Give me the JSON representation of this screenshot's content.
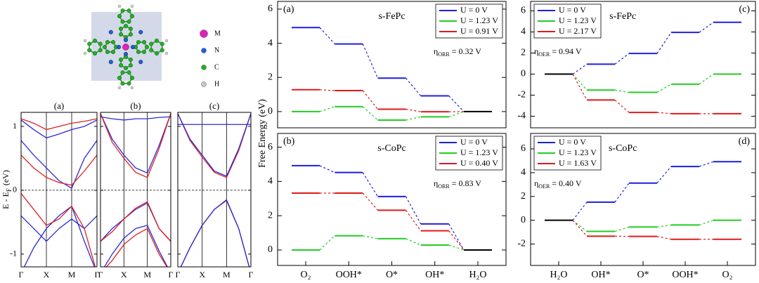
{
  "structure": {
    "legend": [
      {
        "label": "M",
        "color": "#e020c0"
      },
      {
        "label": "N",
        "color": "#2060e0"
      },
      {
        "label": "C",
        "color": "#22b022"
      },
      {
        "label": "H",
        "color": "#c8c8c8"
      }
    ]
  },
  "chart_data": [
    {
      "type": "line",
      "title": "(a)",
      "ylabel": {
        "text": "E - E",
        "subscript": "F",
        "suffix": "(eV)"
      },
      "x": [
        0,
        0.5,
        1,
        1.5,
        2,
        2.5,
        3
      ],
      "xlim": [
        0,
        3
      ],
      "ylim": [
        -1.2,
        1.22
      ],
      "xticks": [
        {
          "value": 0,
          "label": "Γ"
        },
        {
          "value": 1,
          "label": "X"
        },
        {
          "value": 2,
          "label": "M"
        },
        {
          "value": 3,
          "label": "Γ"
        }
      ],
      "yticks": [
        -1,
        0,
        1
      ],
      "ytick_labels": true,
      "xgrid": true,
      "reference_line": 0,
      "series": [
        {
          "color": "#2b2bd6",
          "values": [
            1.1,
            0.95,
            0.82,
            0.88,
            0.95,
            1.0,
            1.1
          ]
        },
        {
          "color": "#2b2bd6",
          "values": [
            0.78,
            0.55,
            0.35,
            0.15,
            0.03,
            0.5,
            0.78
          ]
        },
        {
          "color": "#2b2bd6",
          "values": [
            -1.3,
            -0.9,
            -0.6,
            -0.4,
            -0.25,
            -0.8,
            -1.3
          ]
        },
        {
          "color": "#2b2bd6",
          "values": [
            -0.4,
            -0.6,
            -0.8,
            -0.6,
            -0.45,
            -0.6,
            -0.4
          ]
        },
        {
          "color": "#e02020",
          "values": [
            1.12,
            1.05,
            0.95,
            1.0,
            1.05,
            1.08,
            1.12
          ]
        },
        {
          "color": "#e02020",
          "values": [
            0.55,
            0.35,
            0.2,
            0.12,
            0.08,
            0.3,
            0.55
          ]
        },
        {
          "color": "#e02020",
          "values": [
            -0.05,
            -0.3,
            -0.55,
            -0.45,
            -0.25,
            -0.6,
            -1.3
          ]
        }
      ]
    },
    {
      "type": "line",
      "title": "(b)",
      "x": [
        0,
        0.5,
        1,
        1.5,
        2,
        2.5,
        3
      ],
      "xlim": [
        0,
        3
      ],
      "ylim": [
        -1.2,
        1.22
      ],
      "xticks": [
        {
          "value": 0,
          "label": "Γ"
        },
        {
          "value": 1,
          "label": "X"
        },
        {
          "value": 2,
          "label": "M"
        },
        {
          "value": 3,
          "label": "Γ"
        }
      ],
      "yticks": [
        -1,
        0,
        1
      ],
      "ytick_labels": false,
      "xgrid": true,
      "reference_line": 0,
      "series": [
        {
          "color": "#2b2bd6",
          "values": [
            1.2,
            0.8,
            0.55,
            0.35,
            0.27,
            0.7,
            1.2
          ]
        },
        {
          "color": "#2b2bd6",
          "values": [
            1.15,
            1.12,
            1.1,
            1.12,
            1.12,
            1.14,
            1.15
          ]
        },
        {
          "color": "#2b2bd6",
          "values": [
            -0.8,
            -0.6,
            -0.45,
            -0.3,
            -0.2,
            -0.6,
            -0.8
          ]
        },
        {
          "color": "#2b2bd6",
          "values": [
            -1.3,
            -1.0,
            -0.75,
            -0.6,
            -0.55,
            -0.95,
            -1.3
          ]
        },
        {
          "color": "#e02020",
          "values": [
            1.2,
            0.75,
            0.5,
            0.28,
            0.2,
            0.65,
            1.2
          ]
        },
        {
          "color": "#e02020",
          "values": [
            -0.8,
            -0.65,
            -0.45,
            -0.28,
            -0.18,
            -0.6,
            -0.8
          ]
        },
        {
          "color": "#e02020",
          "values": [
            -1.3,
            -1.1,
            -0.85,
            -0.7,
            -0.6,
            -1.0,
            -1.3
          ]
        }
      ]
    },
    {
      "type": "line",
      "title": "(c)",
      "x": [
        0,
        0.5,
        1,
        1.5,
        2,
        2.5,
        3
      ],
      "xlim": [
        0,
        3
      ],
      "ylim": [
        -1.2,
        1.22
      ],
      "xticks": [
        {
          "value": 0,
          "label": "Γ"
        },
        {
          "value": 1,
          "label": "X"
        },
        {
          "value": 2,
          "label": "M"
        },
        {
          "value": 3,
          "label": "Γ"
        }
      ],
      "yticks": [
        -1,
        0,
        1
      ],
      "ytick_labels": false,
      "xgrid": true,
      "reference_line": 0,
      "series": [
        {
          "color": "#2b2bd6",
          "values": [
            1.03,
            1.03,
            1.03,
            1.03,
            1.03,
            1.03,
            1.03
          ]
        },
        {
          "color": "#e02020",
          "values": [
            1.2,
            0.78,
            0.52,
            0.28,
            0.2,
            0.62,
            1.2
          ]
        },
        {
          "color": "#e02020",
          "values": [
            -1.3,
            -0.9,
            -0.55,
            -0.3,
            -0.16,
            -0.6,
            -1.3
          ]
        },
        {
          "color": "#2b2bd6",
          "values": [
            1.2,
            0.8,
            0.55,
            0.3,
            0.22,
            0.65,
            1.2
          ]
        },
        {
          "color": "#2b2bd6",
          "values": [
            -1.3,
            -0.9,
            -0.55,
            -0.3,
            -0.15,
            -0.6,
            -1.3
          ]
        }
      ]
    },
    {
      "type": "step",
      "label": "(a)",
      "title": "s-FePc",
      "ylabel": "Free Energy (eV)",
      "legend": "upper right",
      "equilibrium_color": "#000000",
      "ylim": [
        -0.95,
        6.45
      ],
      "yticks": [
        0,
        2,
        4,
        6
      ],
      "annotation": {
        "symbol": "η",
        "subscript": "ORR",
        "text": "= 0.32 V"
      },
      "series": [
        {
          "name": "U = 0 V",
          "color": "#1f1fe0",
          "values": [
            4.92,
            3.96,
            1.96,
            0.92,
            0
          ]
        },
        {
          "name": "U = 1.23 V",
          "color": "#22cc22",
          "values": [
            0,
            0.29,
            -0.5,
            -0.31,
            0
          ]
        },
        {
          "name": "U = 0.91 V",
          "color": "#e01a1a",
          "values": [
            1.28,
            1.23,
            0.14,
            -0.01,
            0
          ]
        }
      ]
    },
    {
      "type": "step",
      "label": "(b)",
      "title": "s-CoPc",
      "legend": "upper right",
      "equilibrium_color": "#000000",
      "ylim": [
        -0.9,
        6.8
      ],
      "yticks": [
        0,
        2,
        4,
        6
      ],
      "categories": [
        "O₂",
        "OOH*",
        "O*",
        "OH*",
        "H₂O"
      ],
      "annotation": {
        "symbol": "η",
        "subscript": "ORR",
        "text": "= 0.83 V"
      },
      "series": [
        {
          "name": "U = 0 V",
          "color": "#1f1fe0",
          "values": [
            4.92,
            4.52,
            3.12,
            1.52,
            0
          ]
        },
        {
          "name": "U = 1.23 V",
          "color": "#22cc22",
          "values": [
            0,
            0.83,
            0.66,
            0.29,
            0
          ]
        },
        {
          "name": "U = 0.40 V",
          "color": "#e01a1a",
          "values": [
            3.32,
            3.32,
            2.32,
            1.12,
            0
          ]
        }
      ]
    },
    {
      "type": "step",
      "label": "(c)",
      "title": "s-FePc",
      "legend": "upper left",
      "equilibrium_color": "#000000",
      "ylim": [
        -5.1,
        6.9
      ],
      "yticks": [
        -4,
        -2,
        0,
        2,
        4,
        6
      ],
      "annotation": {
        "symbol": "η",
        "subscript": "OER",
        "text": "= 0.94 V"
      },
      "series": [
        {
          "name": "U = 0 V",
          "color": "#1f1fe0",
          "values": [
            0,
            0.94,
            1.96,
            3.96,
            4.92
          ]
        },
        {
          "name": "U = 1.23 V",
          "color": "#22cc22",
          "values": [
            0,
            -1.52,
            -1.73,
            -0.96,
            0
          ]
        },
        {
          "name": "U = 2.17 V",
          "color": "#e01a1a",
          "values": [
            0,
            -2.46,
            -3.64,
            -3.76,
            -3.76
          ]
        }
      ]
    },
    {
      "type": "step",
      "label": "(d)",
      "title": "s-CoPc",
      "legend": "upper left",
      "equilibrium_color": "#000000",
      "ylim": [
        -3.8,
        7.3
      ],
      "yticks": [
        -2,
        0,
        2,
        4,
        6
      ],
      "categories": [
        "H₂O",
        "OH*",
        "O*",
        "OOH*",
        "O₂"
      ],
      "annotation": {
        "symbol": "η",
        "subscript": "OER",
        "text": "= 0.40 V"
      },
      "series": [
        {
          "name": "U = 0 V",
          "color": "#1f1fe0",
          "values": [
            0,
            1.52,
            3.12,
            4.52,
            4.92
          ]
        },
        {
          "name": "U = 1.23 V",
          "color": "#22cc22",
          "values": [
            0,
            -0.94,
            -0.57,
            -0.4,
            0
          ]
        },
        {
          "name": "U = 1.63 V",
          "color": "#e01a1a",
          "values": [
            0,
            -1.34,
            -1.36,
            -1.6,
            -1.6
          ]
        }
      ]
    }
  ]
}
